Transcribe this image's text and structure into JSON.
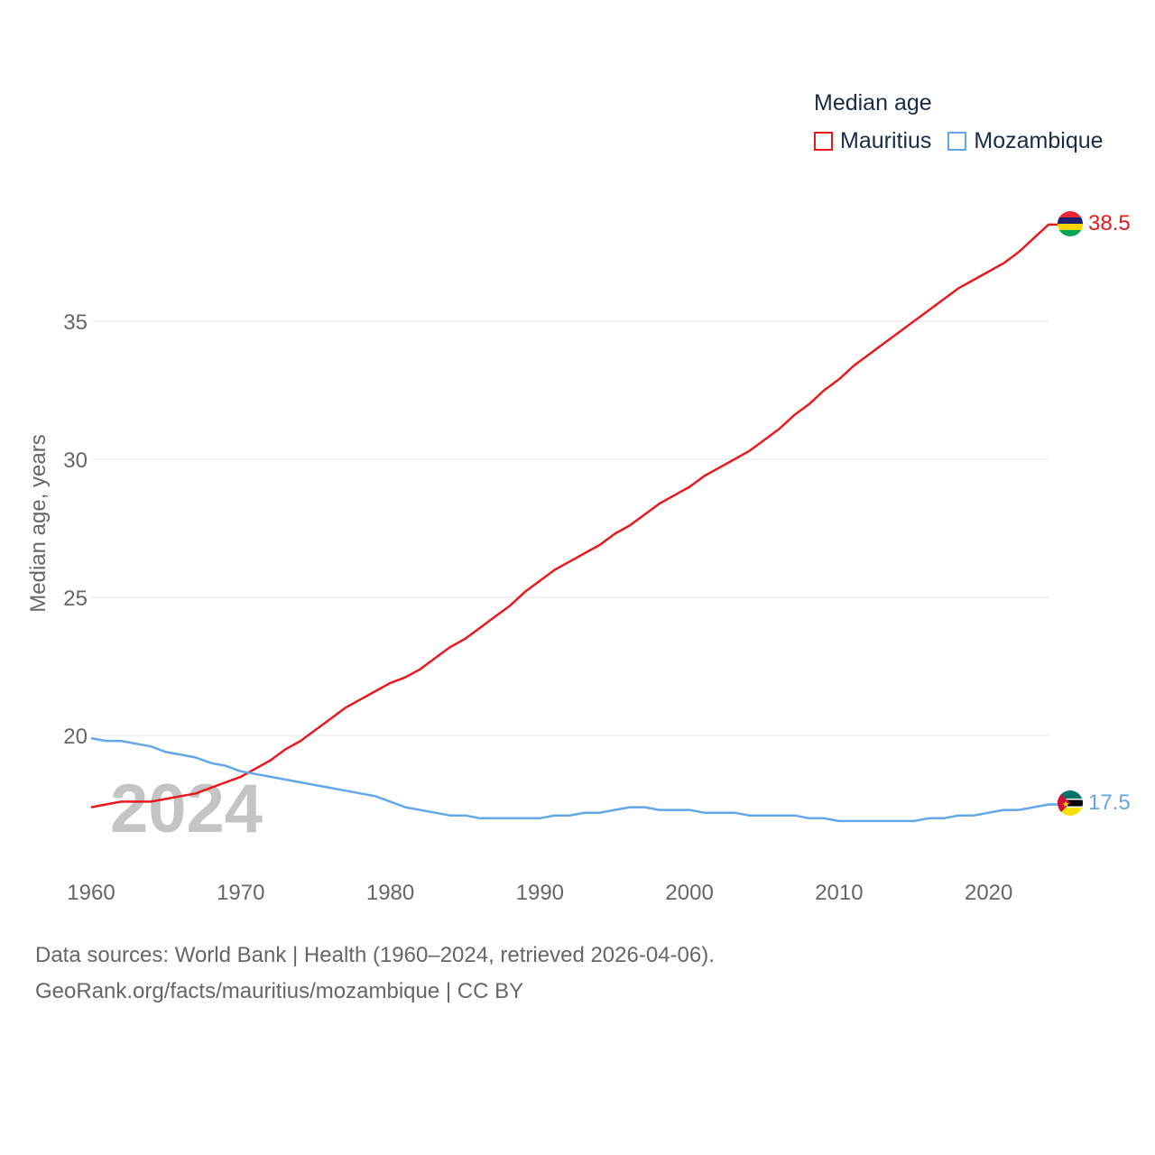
{
  "legend": {
    "title": "Median age",
    "mauritius": "Mauritius",
    "mozambique": "Mozambique"
  },
  "footer": {
    "line1": "Data sources: World Bank | Health (1960–2024, retrieved 2026-04-06).",
    "line2": "GeoRank.org/facts/mauritius/mozambique | CC BY"
  },
  "year_watermark": "2024",
  "colors": {
    "mauritius": "#e8191c",
    "mozambique": "#62a8e8",
    "grid": "#e6e6e6",
    "axis_text": "#666666",
    "watermark": "#c4c4c4"
  },
  "chart_data": {
    "type": "line",
    "title": "",
    "xlabel": "",
    "ylabel": "Median age, years",
    "xlim": [
      1960,
      2024
    ],
    "ylim": [
      15.5,
      39.5
    ],
    "xticks": [
      1960,
      1970,
      1980,
      1990,
      2000,
      2010,
      2020
    ],
    "yticks": [
      20,
      25,
      30,
      35
    ],
    "grid": true,
    "legend_position": "top-right",
    "x": [
      1960,
      1961,
      1962,
      1963,
      1964,
      1965,
      1966,
      1967,
      1968,
      1969,
      1970,
      1971,
      1972,
      1973,
      1974,
      1975,
      1976,
      1977,
      1978,
      1979,
      1980,
      1981,
      1982,
      1983,
      1984,
      1985,
      1986,
      1987,
      1988,
      1989,
      1990,
      1991,
      1992,
      1993,
      1994,
      1995,
      1996,
      1997,
      1998,
      1999,
      2000,
      2001,
      2002,
      2003,
      2004,
      2005,
      2006,
      2007,
      2008,
      2009,
      2010,
      2011,
      2012,
      2013,
      2014,
      2015,
      2016,
      2017,
      2018,
      2019,
      2020,
      2021,
      2022,
      2023,
      2024
    ],
    "series": [
      {
        "name": "Mauritius",
        "color": "#e8191c",
        "end_label": "38.5",
        "values": [
          17.4,
          17.5,
          17.6,
          17.6,
          17.6,
          17.7,
          17.8,
          17.9,
          18.1,
          18.3,
          18.5,
          18.8,
          19.1,
          19.5,
          19.8,
          20.2,
          20.6,
          21.0,
          21.3,
          21.6,
          21.9,
          22.1,
          22.4,
          22.8,
          23.2,
          23.5,
          23.9,
          24.3,
          24.7,
          25.2,
          25.6,
          26.0,
          26.3,
          26.6,
          26.9,
          27.3,
          27.6,
          28.0,
          28.4,
          28.7,
          29.0,
          29.4,
          29.7,
          30.0,
          30.3,
          30.7,
          31.1,
          31.6,
          32.0,
          32.5,
          32.9,
          33.4,
          33.8,
          34.2,
          34.6,
          35.0,
          35.4,
          35.8,
          36.2,
          36.5,
          36.8,
          37.1,
          37.5,
          38.0,
          38.5
        ]
      },
      {
        "name": "Mozambique",
        "color": "#62a8e8",
        "end_label": "17.5",
        "values": [
          19.9,
          19.8,
          19.8,
          19.7,
          19.6,
          19.4,
          19.3,
          19.2,
          19.0,
          18.9,
          18.7,
          18.6,
          18.5,
          18.4,
          18.3,
          18.2,
          18.1,
          18.0,
          17.9,
          17.8,
          17.6,
          17.4,
          17.3,
          17.2,
          17.1,
          17.1,
          17.0,
          17.0,
          17.0,
          17.0,
          17.0,
          17.1,
          17.1,
          17.2,
          17.2,
          17.3,
          17.4,
          17.4,
          17.3,
          17.3,
          17.3,
          17.2,
          17.2,
          17.2,
          17.1,
          17.1,
          17.1,
          17.1,
          17.0,
          17.0,
          16.9,
          16.9,
          16.9,
          16.9,
          16.9,
          16.9,
          17.0,
          17.0,
          17.1,
          17.1,
          17.2,
          17.3,
          17.3,
          17.4,
          17.5
        ]
      }
    ]
  }
}
